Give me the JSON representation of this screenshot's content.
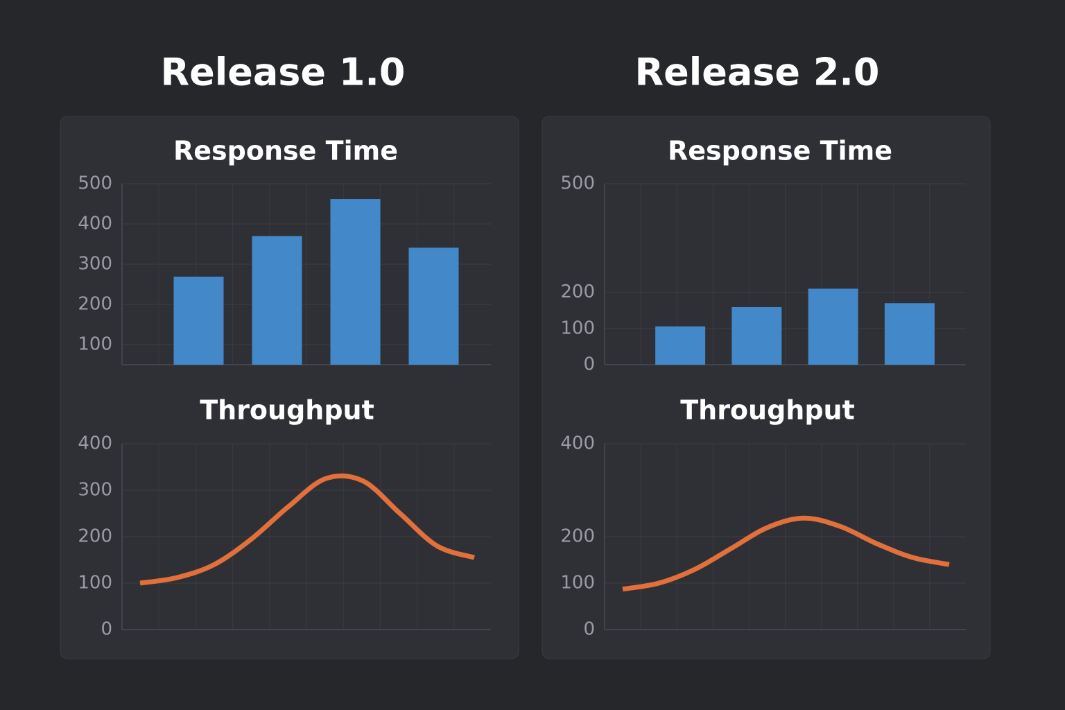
{
  "panels": [
    {
      "title": "Release 1.0"
    },
    {
      "title": "Release 2.0"
    }
  ],
  "chart_data": [
    {
      "type": "bar",
      "title": "Response Time",
      "categories": [
        null,
        null,
        null,
        null
      ],
      "values": [
        269,
        370,
        462,
        341
      ],
      "color": "#4388c9",
      "ylim": [
        50,
        500
      ],
      "yticks": [
        100,
        200,
        300,
        400,
        500
      ],
      "grid": true
    },
    {
      "type": "line",
      "title": "Throughput",
      "categories": [
        null,
        null,
        null,
        null,
        null,
        null,
        null,
        null,
        null,
        null
      ],
      "values": [
        100,
        112,
        140,
        195,
        265,
        325,
        320,
        250,
        180,
        155
      ],
      "color": "#e2703a",
      "ylim": [
        0,
        400
      ],
      "yticks": [
        0,
        100,
        200,
        300,
        400
      ],
      "grid": true
    },
    {
      "type": "bar",
      "title": "Response Time",
      "categories": [
        null,
        null,
        null,
        null
      ],
      "values": [
        106,
        159,
        210,
        170
      ],
      "color": "#4388c9",
      "ylim": [
        0,
        500
      ],
      "yticks": [
        0,
        100,
        200,
        500
      ],
      "grid": true
    },
    {
      "type": "line",
      "title": "Throughput",
      "categories": [
        null,
        null,
        null,
        null,
        null,
        null,
        null,
        null,
        null,
        null
      ],
      "values": [
        87,
        100,
        130,
        175,
        220,
        240,
        222,
        185,
        155,
        140
      ],
      "color": "#e2703a",
      "ylim": [
        0,
        400
      ],
      "yticks": [
        0,
        100,
        200,
        400
      ],
      "grid": true
    }
  ]
}
